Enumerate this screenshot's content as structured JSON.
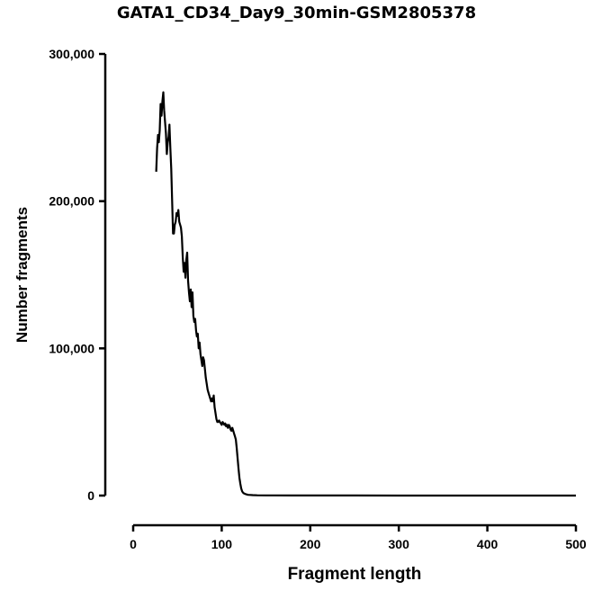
{
  "chart_data": {
    "type": "line",
    "title": "GATA1_CD34_Day9_30min-GSM2805378",
    "xlabel": "Fragment length",
    "ylabel": "Number fragments",
    "xlim": [
      0,
      500
    ],
    "ylim": [
      0,
      300000
    ],
    "xticks": [
      0,
      100,
      200,
      300,
      400,
      500
    ],
    "xtick_labels": [
      "0",
      "100",
      "200",
      "300",
      "400",
      "500"
    ],
    "yticks": [
      0,
      100000,
      200000,
      300000
    ],
    "ytick_labels": [
      "0",
      "100,000",
      "200,000",
      "300,000"
    ],
    "grid": false,
    "legend": "none",
    "line_color": "#000000",
    "series": [
      {
        "x": [
          26,
          27,
          28,
          29,
          30,
          31,
          32,
          33,
          34,
          35,
          36,
          37,
          38,
          39,
          40,
          41,
          42,
          43,
          44,
          45,
          46,
          47,
          48,
          49,
          50,
          51,
          52,
          53,
          54,
          55,
          56,
          57,
          58,
          59,
          60,
          61,
          62,
          63,
          64,
          65,
          66,
          67,
          68,
          69,
          70,
          71,
          72,
          73,
          74,
          75,
          76,
          77,
          78,
          79,
          80,
          81,
          82,
          83,
          84,
          85,
          86,
          87,
          88,
          89,
          90,
          91,
          92,
          93,
          94,
          95,
          96,
          97,
          98,
          99,
          100,
          101,
          102,
          103,
          104,
          105,
          106,
          107,
          108,
          109,
          110,
          111,
          112,
          113,
          114,
          115,
          116,
          117,
          118,
          119,
          120,
          121,
          122,
          123,
          124,
          125,
          126,
          127,
          128,
          129,
          130,
          132,
          135,
          140,
          150,
          160,
          180,
          200,
          250,
          300,
          350,
          400,
          450,
          500
        ],
        "y": [
          220000,
          236000,
          245000,
          240000,
          248000,
          266000,
          258000,
          268000,
          274000,
          262000,
          254000,
          246000,
          232000,
          240000,
          244000,
          252000,
          236000,
          222000,
          200000,
          178000,
          178000,
          184000,
          186000,
          192000,
          190000,
          194000,
          186000,
          184000,
          182000,
          176000,
          162000,
          152000,
          158000,
          148000,
          160000,
          165000,
          146000,
          138000,
          132000,
          140000,
          128000,
          138000,
          122000,
          118000,
          120000,
          112000,
          108000,
          110000,
          100000,
          104000,
          96000,
          92000,
          88000,
          94000,
          92000,
          86000,
          80000,
          76000,
          72000,
          70000,
          68000,
          66000,
          64000,
          66000,
          64000,
          68000,
          60000,
          56000,
          52000,
          50000,
          50000,
          51000,
          50000,
          49000,
          48000,
          50000,
          49000,
          48000,
          49000,
          47000,
          48000,
          46000,
          48000,
          47000,
          45000,
          44000,
          46000,
          44000,
          42000,
          40000,
          38000,
          32000,
          25000,
          18000,
          12000,
          8000,
          5000,
          3000,
          2000,
          1500,
          1200,
          1000,
          800,
          600,
          500,
          400,
          300,
          200,
          150,
          100,
          80,
          60,
          40,
          30,
          20,
          15,
          10,
          10
        ]
      }
    ]
  }
}
